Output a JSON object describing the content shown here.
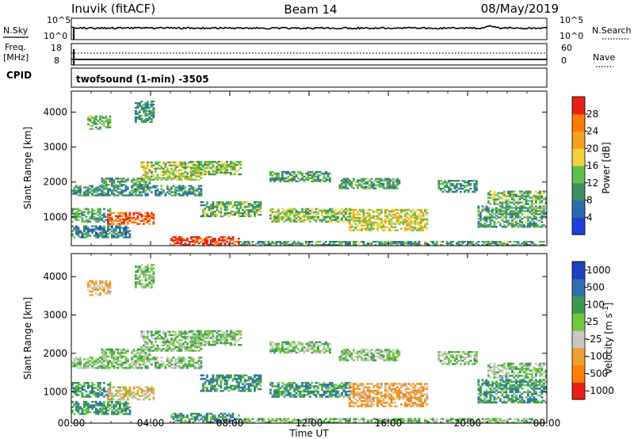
{
  "header": {
    "station": "Inuvik (fitACF)",
    "beam": "Beam 14",
    "date": "08/May/2019"
  },
  "top_panels": {
    "nsky_label": "N.Sky",
    "nsky_ticks": [
      "10^5",
      "10^0"
    ],
    "nsearch_label": "N.Search",
    "nsearch_ticks": [
      "10^5",
      "10^0"
    ],
    "freq_label_1": "Freq.",
    "freq_label_2": "[MHz]",
    "freq_ticks": [
      "18",
      "8"
    ],
    "nave_label": "Nave",
    "nave_ticks": [
      "60",
      "0"
    ],
    "cpid_label": "CPID",
    "cpid_text": "twofsound (1-min) -3505"
  },
  "chart_data": [
    {
      "type": "heatmap",
      "title": "",
      "xlabel": "Time UT",
      "ylabel": "Slant Range [km]",
      "x_ticks": [
        "00:00",
        "04:00",
        "08:00",
        "12:00",
        "16:00",
        "20:00",
        "00:00"
      ],
      "x_range_hours": [
        0,
        24
      ],
      "y_ticks": [
        "1000",
        "2000",
        "3000",
        "4000"
      ],
      "y_range_km": [
        180,
        4600
      ],
      "colorbar_label": "Power [dB]",
      "colorbar_ticks": [
        "4",
        "8",
        "12",
        "16",
        "20",
        "24",
        "28"
      ],
      "colorbar_colors": [
        "#1f3fd8",
        "#2b6cb0",
        "#3f8f60",
        "#5fbf4a",
        "#f2d23a",
        "#f4a020",
        "#ff7a00",
        "#e82015"
      ],
      "bands": [
        {
          "t0": 0.0,
          "t1": 6.5,
          "r0": 1600,
          "r1": 1900,
          "level": 0.3
        },
        {
          "t0": 1.5,
          "t1": 4.0,
          "r0": 1900,
          "r1": 2100,
          "level": 0.35
        },
        {
          "t0": 3.5,
          "t1": 6.5,
          "r0": 2050,
          "r1": 2550,
          "level": 0.5
        },
        {
          "t0": 6.0,
          "t1": 8.5,
          "r0": 2200,
          "r1": 2600,
          "level": 0.45
        },
        {
          "t0": 10.0,
          "t1": 13.0,
          "r0": 2000,
          "r1": 2300,
          "level": 0.35
        },
        {
          "t0": 13.5,
          "t1": 16.5,
          "r0": 1800,
          "r1": 2100,
          "level": 0.35
        },
        {
          "t0": 18.5,
          "t1": 20.5,
          "r0": 1700,
          "r1": 2050,
          "level": 0.3
        },
        {
          "t0": 21.0,
          "t1": 24.0,
          "r0": 1350,
          "r1": 1750,
          "level": 0.4
        },
        {
          "t0": 0.0,
          "t1": 2.0,
          "r0": 850,
          "r1": 1250,
          "level": 0.35
        },
        {
          "t0": 1.8,
          "t1": 4.2,
          "r0": 780,
          "r1": 1100,
          "level": 0.85
        },
        {
          "t0": 6.5,
          "t1": 9.5,
          "r0": 1000,
          "r1": 1450,
          "level": 0.4
        },
        {
          "t0": 10.0,
          "t1": 14.0,
          "r0": 850,
          "r1": 1250,
          "level": 0.45
        },
        {
          "t0": 14.0,
          "t1": 18.0,
          "r0": 600,
          "r1": 1200,
          "level": 0.55
        },
        {
          "t0": 20.5,
          "t1": 24.0,
          "r0": 700,
          "r1": 1300,
          "level": 0.35
        },
        {
          "t0": 0.0,
          "t1": 3.0,
          "r0": 400,
          "r1": 750,
          "level": 0.25
        },
        {
          "t0": 5.0,
          "t1": 8.5,
          "r0": 180,
          "r1": 450,
          "level": 0.95
        },
        {
          "t0": 8.5,
          "t1": 24.0,
          "r0": 180,
          "r1": 300,
          "level": 0.35
        },
        {
          "t0": 0.8,
          "t1": 2.0,
          "r0": 3500,
          "r1": 3900,
          "level": 0.4
        },
        {
          "t0": 3.2,
          "t1": 4.2,
          "r0": 3700,
          "r1": 4300,
          "level": 0.3
        }
      ]
    },
    {
      "type": "heatmap",
      "title": "",
      "xlabel": "Time UT",
      "ylabel": "Slant Range [km]",
      "x_ticks": [
        "00:00",
        "04:00",
        "08:00",
        "12:00",
        "16:00",
        "20:00",
        "00:00"
      ],
      "x_range_hours": [
        0,
        24
      ],
      "y_ticks": [
        "1000",
        "2000",
        "3000",
        "4000"
      ],
      "y_range_km": [
        180,
        4600
      ],
      "colorbar_label": "Velocity [m s^-1]",
      "colorbar_label_main": "Velocity [m s",
      "colorbar_label_exp": "-1",
      "colorbar_label_end": "]",
      "colorbar_ticks": [
        "1000",
        "500",
        "100",
        "25",
        "-25",
        "-100",
        "-500",
        "-1000"
      ],
      "colorbar_colors": [
        "#2040c0",
        "#3070b0",
        "#3a9a50",
        "#70c840",
        "#c8c8c0",
        "#f0a030",
        "#ff8000",
        "#e82015"
      ],
      "bands": [
        {
          "t0": 0.0,
          "t1": 6.5,
          "r0": 1600,
          "r1": 1900,
          "level": 0.45
        },
        {
          "t0": 1.5,
          "t1": 4.0,
          "r0": 1900,
          "r1": 2100,
          "level": 0.45
        },
        {
          "t0": 3.5,
          "t1": 6.5,
          "r0": 2050,
          "r1": 2550,
          "level": 0.45
        },
        {
          "t0": 6.0,
          "t1": 8.5,
          "r0": 2200,
          "r1": 2600,
          "level": 0.45
        },
        {
          "t0": 10.0,
          "t1": 13.0,
          "r0": 2000,
          "r1": 2300,
          "level": 0.45
        },
        {
          "t0": 13.5,
          "t1": 16.5,
          "r0": 1800,
          "r1": 2100,
          "level": 0.45
        },
        {
          "t0": 18.5,
          "t1": 20.5,
          "r0": 1700,
          "r1": 2050,
          "level": 0.45
        },
        {
          "t0": 21.0,
          "t1": 24.0,
          "r0": 1350,
          "r1": 1750,
          "level": 0.45
        },
        {
          "t0": 0.0,
          "t1": 2.0,
          "r0": 850,
          "r1": 1250,
          "level": 0.3
        },
        {
          "t0": 1.8,
          "t1": 4.2,
          "r0": 780,
          "r1": 1100,
          "level": 0.6
        },
        {
          "t0": 6.5,
          "t1": 9.5,
          "r0": 1000,
          "r1": 1450,
          "level": 0.3
        },
        {
          "t0": 10.0,
          "t1": 14.0,
          "r0": 850,
          "r1": 1250,
          "level": 0.3
        },
        {
          "t0": 14.0,
          "t1": 18.0,
          "r0": 600,
          "r1": 1200,
          "level": 0.7
        },
        {
          "t0": 20.5,
          "t1": 24.0,
          "r0": 700,
          "r1": 1300,
          "level": 0.3
        },
        {
          "t0": 0.0,
          "t1": 3.0,
          "r0": 400,
          "r1": 750,
          "level": 0.3
        },
        {
          "t0": 5.0,
          "t1": 8.5,
          "r0": 180,
          "r1": 450,
          "level": 0.3
        },
        {
          "t0": 8.5,
          "t1": 24.0,
          "r0": 180,
          "r1": 300,
          "level": 0.45
        },
        {
          "t0": 0.8,
          "t1": 2.0,
          "r0": 3500,
          "r1": 3900,
          "level": 0.65
        },
        {
          "t0": 3.2,
          "t1": 4.2,
          "r0": 3700,
          "r1": 4300,
          "level": 0.45
        }
      ]
    }
  ]
}
